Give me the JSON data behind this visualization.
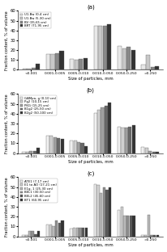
{
  "xlabel": "Size of particles, mm",
  "ylabel": "Fraction content, % of volume",
  "ylim": [
    0,
    60
  ],
  "yticks": [
    0,
    10,
    20,
    30,
    40,
    50,
    60
  ],
  "subplot_labels": [
    "(a)",
    "(b)",
    "(c)"
  ],
  "x_labels": [
    "<0.001",
    "0.001-0.005",
    "0.005-0.010",
    "0.010-0.050",
    "0.050-0.250",
    ">0.250"
  ],
  "series_a": {
    "labels": [
      "U1.Bw (0-4 cm)",
      "U1.Bw (5-30 cm)",
      "BV (35-65 cm)",
      "BRT (71-95 cm)"
    ],
    "colors": [
      "#e8e8e8",
      "#c8c8c8",
      "#888888",
      "#333333"
    ],
    "data": [
      [
        1.5,
        16,
        11,
        45,
        24,
        5
      ],
      [
        1.5,
        16,
        10,
        45,
        22,
        15
      ],
      [
        2.0,
        17,
        11,
        45,
        23,
        3
      ],
      [
        6.0,
        19,
        12,
        46,
        20,
        4
      ]
    ]
  },
  "series_b": {
    "labels": [
      "GAMpa, g (0-10 cm)",
      "Pg2 (10-15 cm)",
      "PKG (15-25 cm)",
      "B1g2 (25-50 cm)",
      "B2g2 (50-100 cm)"
    ],
    "colors": [
      "#f0f0f0",
      "#d0d0d0",
      "#a0a0a0",
      "#686868",
      "#333333"
    ],
    "data": [
      [
        1.5,
        18,
        13,
        41,
        27,
        6
      ],
      [
        1.5,
        18,
        13,
        44,
        26,
        5
      ],
      [
        2.0,
        16,
        11,
        46,
        26,
        2
      ],
      [
        2.0,
        15,
        10,
        48,
        27,
        1
      ],
      [
        5.0,
        14,
        7,
        51,
        28,
        1
      ]
    ]
  },
  "series_c": {
    "labels": [
      "ATE1 (7-17 cm)",
      "E1 to AO (17-21 cm)",
      "E1g, 1 (25-30 cm)",
      "BEL1 (30-50 cm)",
      "BEL2 (45-60 cm)",
      "BT1 (60-95 cm)"
    ],
    "colors": [
      "#f0f0f0",
      "#d0d0d0",
      "#b8b8b8",
      "#909090",
      "#585858",
      "#333333"
    ],
    "data": [
      [
        1.0,
        12,
        8,
        53,
        27,
        1
      ],
      [
        1.0,
        12,
        9,
        52,
        30,
        1
      ],
      [
        5.0,
        10,
        9,
        44,
        21,
        22
      ],
      [
        5.5,
        16,
        9,
        50,
        21,
        1
      ],
      [
        2.0,
        14,
        9,
        47,
        21,
        1
      ],
      [
        5.0,
        16,
        9,
        50,
        21,
        1
      ]
    ]
  }
}
